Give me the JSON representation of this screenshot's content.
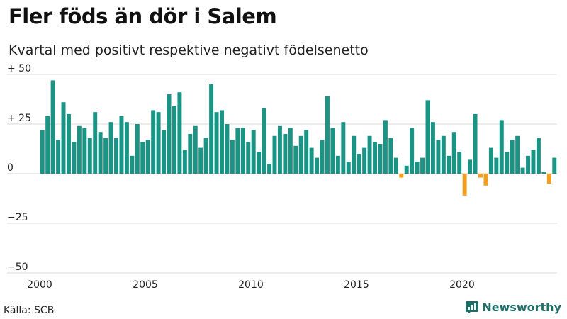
{
  "header": {
    "title": "Fler föds än dör i Salem",
    "subtitle": "Kvartal med positivt respektive negativt födelsenetto"
  },
  "footer": {
    "source": "Källa: SCB",
    "brand": "Newsworthy"
  },
  "colors": {
    "positive": "#1a9485",
    "negative": "#f0a020",
    "brand": "#1f6f68"
  },
  "chart_data": {
    "type": "bar",
    "title": "Fler föds än dör i Salem",
    "subtitle": "Kvartal med positivt respektive negativt födelsenetto",
    "xlabel": "",
    "ylabel": "",
    "ylim": [
      -50,
      50
    ],
    "y_ticks": [
      {
        "value": 50,
        "label": "+ 50"
      },
      {
        "value": 25,
        "label": "+ 25"
      },
      {
        "value": 0,
        "label": "0"
      },
      {
        "value": -25,
        "label": "−25"
      },
      {
        "value": -50,
        "label": "−50"
      }
    ],
    "x_ticks": [
      {
        "value": 2000,
        "label": "2000"
      },
      {
        "value": 2005,
        "label": "2005"
      },
      {
        "value": 2010,
        "label": "2010"
      },
      {
        "value": 2015,
        "label": "2015"
      },
      {
        "value": 2020,
        "label": "2020"
      }
    ],
    "start_year": 2000,
    "start_quarter": 1,
    "values": [
      22,
      29,
      47,
      17,
      36,
      30,
      16,
      24,
      23,
      18,
      31,
      21,
      18,
      26,
      18,
      29,
      26,
      9,
      25,
      16,
      17,
      32,
      31,
      22,
      40,
      34,
      41,
      12,
      20,
      24,
      13,
      18,
      45,
      31,
      32,
      25,
      17,
      23,
      23,
      16,
      22,
      11,
      33,
      5,
      19,
      24,
      20,
      23,
      14,
      19,
      22,
      13,
      8,
      17,
      39,
      23,
      9,
      26,
      6,
      19,
      10,
      13,
      19,
      16,
      15,
      27,
      18,
      8,
      -2,
      4,
      23,
      6,
      8,
      37,
      26,
      17,
      19,
      9,
      21,
      11,
      -11,
      7,
      30,
      -2,
      -6,
      13,
      8,
      27,
      11,
      17,
      19,
      3,
      9,
      12,
      18,
      1,
      -5,
      8
    ]
  }
}
